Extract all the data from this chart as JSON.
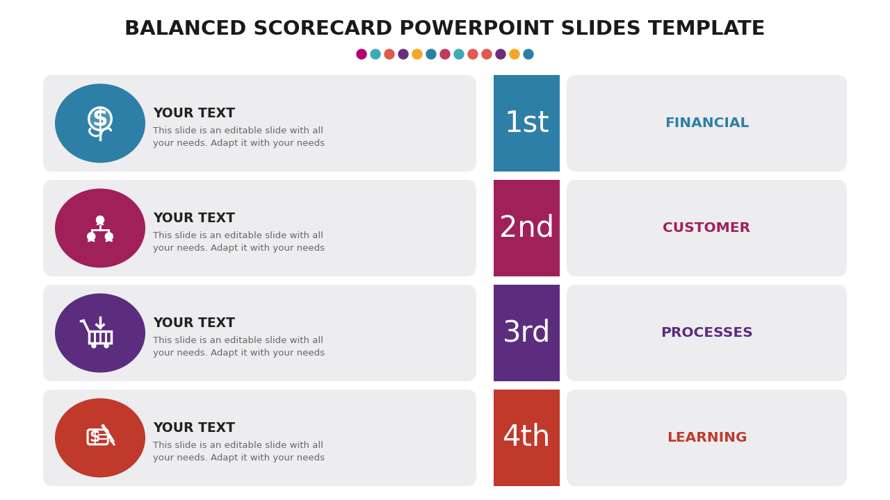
{
  "title": "BALANCED SCORECARD POWERPOINT SLIDES TEMPLATE",
  "title_fontsize": 21,
  "background_color": "#ffffff",
  "dot_colors": [
    "#b5006e",
    "#3aacb5",
    "#e05a4e",
    "#6b2e7a",
    "#f5a623",
    "#2a7fa8",
    "#c0395e",
    "#3aacb5",
    "#e05a4e",
    "#e05a4e",
    "#6b2e7a",
    "#f5a623",
    "#2a7fa8"
  ],
  "rows": [
    {
      "icon_color": "#2e7fa8",
      "rank": "1st",
      "rank_color": "#2e7fa8",
      "label": "FINANCIAL",
      "label_color": "#2e7fa8",
      "heading": "YOUR TEXT",
      "body": "This slide is an editable slide with all\nyour needs. Adapt it with your needs"
    },
    {
      "icon_color": "#a0205a",
      "rank": "2nd",
      "rank_color": "#a0205a",
      "label": "CUSTOMER",
      "label_color": "#a0205a",
      "heading": "YOUR TEXT",
      "body": "This slide is an editable slide with all\nyour needs. Adapt it with your needs"
    },
    {
      "icon_color": "#5c2d7e",
      "rank": "3rd",
      "rank_color": "#5c2d7e",
      "label": "PROCESSES",
      "label_color": "#5c2d7e",
      "heading": "YOUR TEXT",
      "body": "This slide is an editable slide with all\nyour needs. Adapt it with your needs"
    },
    {
      "icon_color": "#c0392b",
      "rank": "4th",
      "rank_color": "#c0392b",
      "label": "LEARNING",
      "label_color": "#c0392b",
      "heading": "YOUR TEXT",
      "body": "This slide is an editable slide with all\nyour needs. Adapt it with your needs"
    }
  ],
  "card_bg": "#ededf0",
  "label_box_bg": "#ededf0"
}
